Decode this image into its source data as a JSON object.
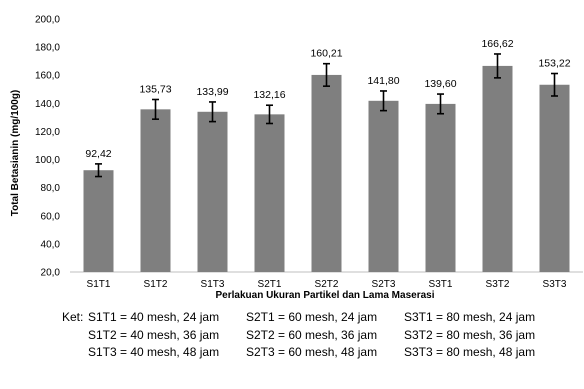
{
  "chart_data": {
    "type": "bar",
    "title": "",
    "xlabel": "Perlakuan Ukuran Partikel dan Lama Maserasi",
    "ylabel": "Total Betasianin (mg/100g)",
    "ylim": [
      20,
      200
    ],
    "yticks": [
      "20,0",
      "40,0",
      "60,0",
      "80,0",
      "100,0",
      "120,0",
      "140,0",
      "160,0",
      "180,0",
      "200,0"
    ],
    "ytick_values": [
      20,
      40,
      60,
      80,
      100,
      120,
      140,
      160,
      180,
      200
    ],
    "categories": [
      "S1T1",
      "S1T2",
      "S1T3",
      "S2T1",
      "S2T2",
      "S2T3",
      "S3T1",
      "S3T2",
      "S3T3"
    ],
    "values": [
      92.42,
      135.73,
      133.99,
      132.16,
      160.21,
      141.8,
      139.6,
      166.62,
      153.22
    ],
    "data_labels": [
      "92,42",
      "135,73",
      "133,99",
      "132,16",
      "160,21",
      "141,80",
      "139,60",
      "166,62",
      "153,22"
    ],
    "error": [
      4.5,
      7.0,
      7.0,
      6.5,
      8.0,
      7.0,
      7.0,
      8.5,
      8.0
    ],
    "grid": false,
    "bar_color": "#7f7f7f"
  },
  "legend": {
    "prefix": "Ket:",
    "rows": [
      [
        "S1T1 = 40 mesh, 24 jam",
        "S2T1 = 60 mesh, 24 jam",
        "S3T1 = 80 mesh, 24 jam"
      ],
      [
        "S1T2 = 40 mesh, 36 jam",
        "S2T2 = 60 mesh, 36 jam",
        "S3T2 = 80 mesh, 36 jam"
      ],
      [
        "S1T3 = 40 mesh, 48 jam",
        "S2T3 = 60 mesh, 48 jam",
        "S3T3 = 80 mesh, 48 jam"
      ]
    ]
  }
}
